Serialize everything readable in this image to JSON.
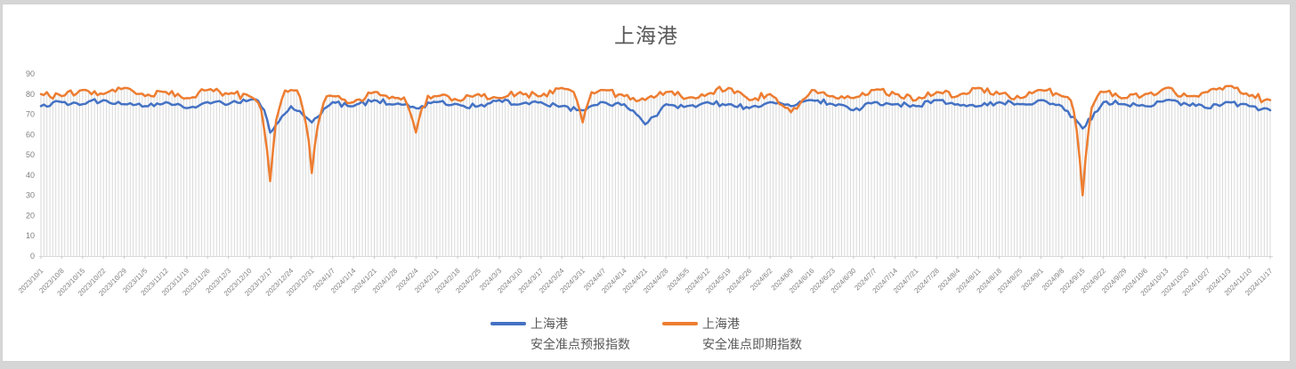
{
  "window": {
    "background_color": "#d6d6d6",
    "chart_background_color": "#ffffff",
    "chart_border_color": "#d2d2d2"
  },
  "chart_data": {
    "type": "line",
    "title": "上海港",
    "title_color": "#595959",
    "xlabel": "",
    "ylabel": "",
    "ylim": [
      0,
      90
    ],
    "y_ticks": [
      0,
      10,
      20,
      30,
      40,
      50,
      60,
      70,
      80,
      90
    ],
    "grid": "vertical-drop-lines",
    "grid_color": "#d9d9d9",
    "axis_line_color": "#d9d9d9",
    "tick_label_color": "#7f7f7f",
    "legend_position": "bottom",
    "categories": [
      "2023/10/1",
      "2023/10/8",
      "2023/10/15",
      "2023/10/22",
      "2023/10/29",
      "2023/11/5",
      "2023/11/12",
      "2023/11/19",
      "2023/11/26",
      "2023/12/3",
      "2023/12/10",
      "2023/12/17",
      "2023/12/24",
      "2023/12/31",
      "2024/1/7",
      "2024/1/14",
      "2024/1/21",
      "2024/1/28",
      "2024/2/4",
      "2024/2/11",
      "2024/2/18",
      "2024/2/25",
      "2024/3/3",
      "2024/3/10",
      "2024/3/17",
      "2024/3/24",
      "2024/3/31",
      "2024/4/7",
      "2024/4/14",
      "2024/4/21",
      "2024/4/28",
      "2024/5/5",
      "2024/5/12",
      "2024/5/19",
      "2024/5/26",
      "2024/6/2",
      "2024/6/9",
      "2024/6/16",
      "2024/6/23",
      "2024/6/30",
      "2024/7/7",
      "2024/7/14",
      "2024/7/21",
      "2024/7/28",
      "2024/8/4",
      "2024/8/11",
      "2024/8/18",
      "2024/8/25",
      "2024/9/1",
      "2024/9/8",
      "2024/9/15",
      "2024/9/22",
      "2024/9/29",
      "2024/10/6",
      "2024/10/13",
      "2024/10/20",
      "2024/10/27",
      "2024/11/3",
      "2024/11/10",
      "2024/11/17"
    ],
    "series": [
      {
        "name": "上海港\n安全准点预报指数",
        "color": "#4472C4",
        "values": [
          74,
          76,
          75,
          77,
          75,
          74,
          76,
          73,
          76,
          75,
          77,
          61,
          74,
          66,
          76,
          74,
          77,
          75,
          73,
          76,
          75,
          74,
          77,
          75,
          76,
          74,
          72,
          76,
          75,
          65,
          75,
          74,
          76,
          75,
          73,
          76,
          74,
          77,
          75,
          72,
          76,
          75,
          74,
          77,
          75,
          74,
          76,
          75,
          77,
          74,
          63,
          76,
          75,
          74,
          77,
          75,
          73,
          76,
          74,
          72
        ]
      },
      {
        "name": "上海港\n安全准点即期指数",
        "color": "#ED7D31",
        "values": [
          80,
          79,
          82,
          80,
          83,
          79,
          81,
          78,
          82,
          80,
          79,
          37,
          82,
          41,
          79,
          76,
          81,
          78,
          61,
          79,
          77,
          80,
          78,
          81,
          79,
          83,
          66,
          82,
          79,
          77,
          81,
          78,
          80,
          83,
          77,
          80,
          71,
          82,
          79,
          78,
          82,
          80,
          77,
          81,
          79,
          83,
          80,
          78,
          82,
          79,
          30,
          81,
          78,
          80,
          83,
          79,
          81,
          84,
          79,
          77
        ]
      }
    ]
  }
}
